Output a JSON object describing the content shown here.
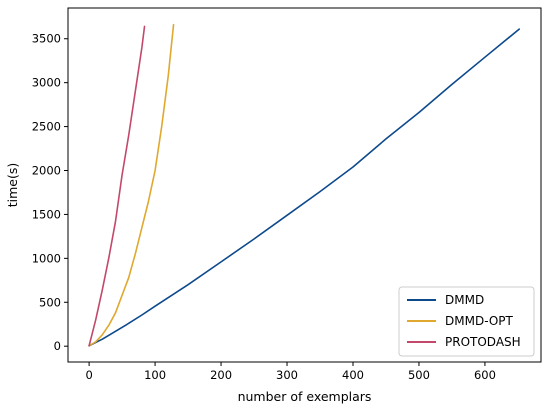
{
  "chart_data": {
    "type": "line",
    "title": "",
    "xlabel": "number of exemplars",
    "ylabel": "time(s)",
    "xlim": [
      -32,
      685
    ],
    "ylim": [
      -180,
      3850
    ],
    "xticks": [
      0,
      100,
      200,
      300,
      400,
      500,
      600
    ],
    "yticks": [
      0,
      500,
      1000,
      1500,
      2000,
      2500,
      3000,
      3500
    ],
    "grid": false,
    "legend_position": "bottom-right",
    "series": [
      {
        "name": "DMMD",
        "color": "#0d4a8c",
        "points": [
          [
            0,
            5
          ],
          [
            20,
            80
          ],
          [
            40,
            170
          ],
          [
            60,
            260
          ],
          [
            80,
            355
          ],
          [
            100,
            455
          ],
          [
            150,
            700
          ],
          [
            200,
            960
          ],
          [
            250,
            1220
          ],
          [
            300,
            1490
          ],
          [
            350,
            1760
          ],
          [
            400,
            2040
          ],
          [
            450,
            2360
          ],
          [
            500,
            2660
          ],
          [
            550,
            2980
          ],
          [
            600,
            3290
          ],
          [
            652,
            3610
          ]
        ]
      },
      {
        "name": "DMMD-OPT",
        "color": "#e0a82e",
        "points": [
          [
            0,
            5
          ],
          [
            10,
            50
          ],
          [
            20,
            130
          ],
          [
            30,
            240
          ],
          [
            40,
            380
          ],
          [
            50,
            580
          ],
          [
            60,
            780
          ],
          [
            70,
            1050
          ],
          [
            80,
            1350
          ],
          [
            90,
            1650
          ],
          [
            100,
            2000
          ],
          [
            110,
            2500
          ],
          [
            120,
            3080
          ],
          [
            128,
            3660
          ]
        ]
      },
      {
        "name": "PROTODASH",
        "color": "#c2496b",
        "points": [
          [
            0,
            5
          ],
          [
            10,
            300
          ],
          [
            20,
            640
          ],
          [
            30,
            1010
          ],
          [
            40,
            1420
          ],
          [
            50,
            1950
          ],
          [
            60,
            2400
          ],
          [
            70,
            2900
          ],
          [
            80,
            3400
          ],
          [
            84,
            3640
          ]
        ]
      }
    ]
  }
}
